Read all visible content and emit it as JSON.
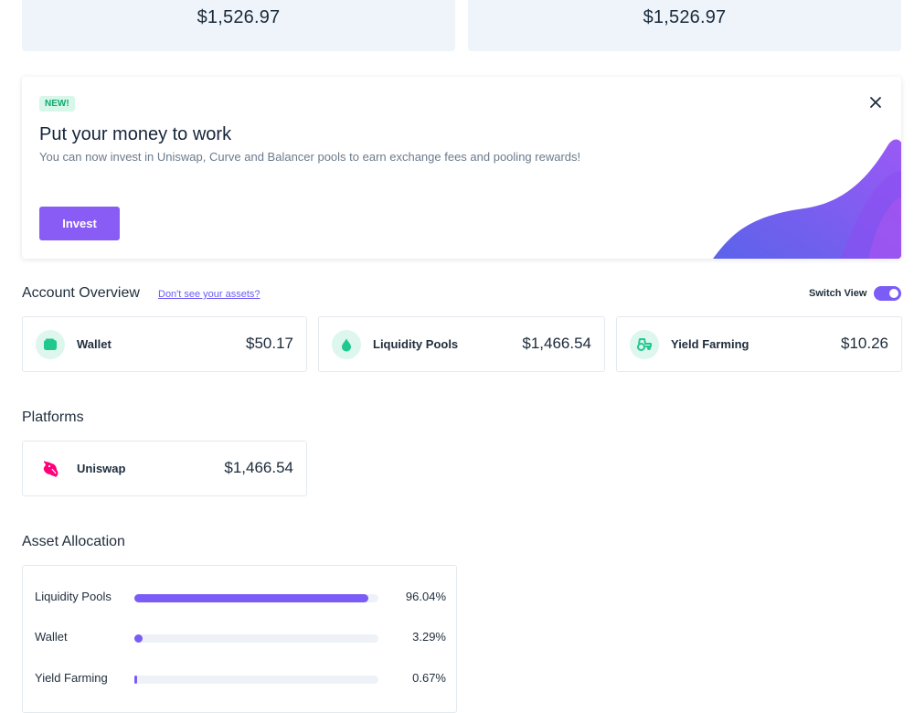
{
  "summary": {
    "left_value": "$1,526.97",
    "right_value": "$1,526.97"
  },
  "banner": {
    "badge": "NEW!",
    "title": "Put your money to work",
    "description": "You can now invest in Uniswap, Curve and Balancer pools to earn exchange fees and pooling rewards!",
    "button_label": "Invest",
    "accent": "#8a5cf6"
  },
  "account_overview": {
    "title": "Account Overview",
    "help_link": "Don't see your assets?",
    "switch_label": "Switch View",
    "switch_on": true,
    "cards": [
      {
        "label": "Wallet",
        "value": "$50.17",
        "icon": "wallet-icon"
      },
      {
        "label": "Liquidity Pools",
        "value": "$1,466.54",
        "icon": "droplet-icon"
      },
      {
        "label": "Yield Farming",
        "value": "$10.26",
        "icon": "tractor-icon"
      }
    ]
  },
  "platforms": {
    "title": "Platforms",
    "items": [
      {
        "label": "Uniswap",
        "value": "$1,466.54",
        "icon": "unicorn-icon"
      }
    ]
  },
  "asset_allocation": {
    "title": "Asset Allocation",
    "rows": [
      {
        "label": "Liquidity Pools",
        "percent": "96.04%",
        "fraction": 0.9604
      },
      {
        "label": "Wallet",
        "percent": "3.29%",
        "fraction": 0.0329
      },
      {
        "label": "Yield Farming",
        "percent": "0.67%",
        "fraction": 0.0067
      }
    ]
  },
  "colors": {
    "accent": "#7b5cf6",
    "icon_bg": "#ddf6ee",
    "icon_green": "#1fc98e",
    "badge_green": "#11a96c",
    "uniswap_pink": "#ff007a"
  }
}
